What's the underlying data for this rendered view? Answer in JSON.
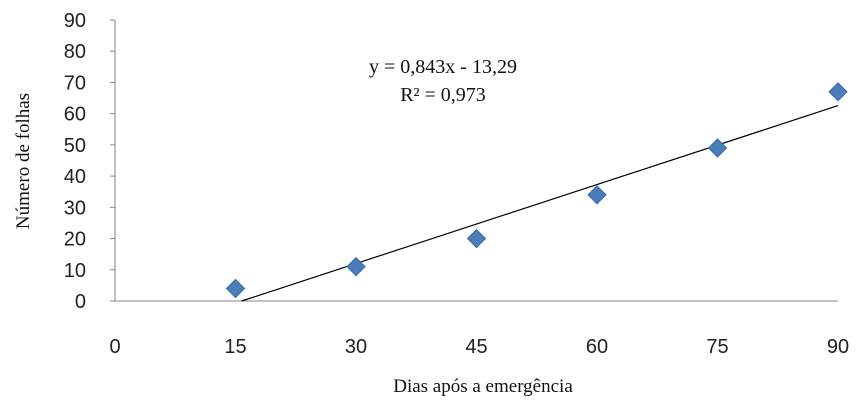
{
  "chart_data": {
    "type": "scatter",
    "title": "",
    "xlabel": "Dias após a emergência",
    "ylabel": "Número de folhas",
    "xlim": [
      0,
      90
    ],
    "ylim": [
      0,
      90
    ],
    "xticks": [
      0,
      15,
      30,
      45,
      60,
      75,
      90
    ],
    "yticks": [
      0,
      10,
      20,
      30,
      40,
      50,
      60,
      70,
      80,
      90
    ],
    "grid": false,
    "legend": "none",
    "marker_color": "#4a7ebb",
    "trendline_color": "#000000",
    "points": [
      {
        "x": 15,
        "y": 4
      },
      {
        "x": 30,
        "y": 11
      },
      {
        "x": 45,
        "y": 20
      },
      {
        "x": 60,
        "y": 34
      },
      {
        "x": 75,
        "y": 49
      },
      {
        "x": 90,
        "y": 67
      }
    ],
    "trendline": {
      "slope": 0.843,
      "intercept": -13.29,
      "equation_text": "y = 0,843x - 13,29",
      "r2_text": "R² = 0,973"
    }
  }
}
